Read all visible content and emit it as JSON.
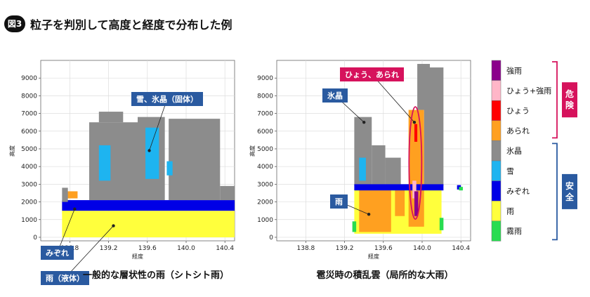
{
  "figure": {
    "badge": "図3",
    "title": "粒子を判別して高度と経度で分布した例"
  },
  "colors": {
    "強雨": "#8b008b",
    "ひょう+強雨": "#ffb6c8",
    "ひょう": "#ff0000",
    "あられ": "#ffa020",
    "氷晶": "#8c8c8c",
    "雪": "#1eb4f0",
    "みぞれ": "#0000e6",
    "雨": "#ffff3c",
    "霧雨": "#28dc50",
    "callout_blue": "#2a5aa0",
    "callout_red": "#d6125c"
  },
  "legend": {
    "items": [
      "強雨",
      "ひょう+強雨",
      "ひょう",
      "あられ",
      "氷晶",
      "雪",
      "みぞれ",
      "雨",
      "霧雨"
    ],
    "danger_label": "危険",
    "safe_label": "安全"
  },
  "chart_data": [
    {
      "type": "scatter",
      "caption": "一般的な層状性の雨（シトシト雨）",
      "xlabel": "経度",
      "ylabel": "高度",
      "xlim": [
        138.5,
        140.5
      ],
      "ylim": [
        -200,
        10000
      ],
      "xticks": [
        "138.8",
        "139.2",
        "139.6",
        "140.0",
        "140.4"
      ],
      "yticks": [
        "0",
        "1000",
        "2000",
        "3000",
        "4000",
        "5000",
        "6000",
        "7000",
        "8000",
        "9000"
      ],
      "grid": true,
      "regions": [
        {
          "class": "雨",
          "lon": [
            138.72,
            140.5
          ],
          "alt": [
            0,
            1500
          ]
        },
        {
          "class": "雨",
          "lon": [
            138.72,
            138.85
          ],
          "alt": [
            1300,
            1800
          ]
        },
        {
          "class": "あられ",
          "lon": [
            138.76,
            138.88
          ],
          "alt": [
            2200,
            2600
          ]
        },
        {
          "class": "みぞれ",
          "lon": [
            138.72,
            140.5
          ],
          "alt": [
            1500,
            2100
          ]
        },
        {
          "class": "氷晶",
          "lon": [
            138.72,
            138.78
          ],
          "alt": [
            2000,
            2800
          ]
        },
        {
          "class": "氷晶",
          "lon": [
            139.0,
            139.5
          ],
          "alt": [
            2100,
            6500
          ]
        },
        {
          "class": "氷晶",
          "lon": [
            139.1,
            139.35
          ],
          "alt": [
            6500,
            7100
          ]
        },
        {
          "class": "氷晶",
          "lon": [
            139.5,
            139.78
          ],
          "alt": [
            2100,
            6800
          ]
        },
        {
          "class": "氷晶",
          "lon": [
            139.82,
            140.35
          ],
          "alt": [
            2100,
            6700
          ]
        },
        {
          "class": "氷晶",
          "lon": [
            140.35,
            140.5
          ],
          "alt": [
            2100,
            2900
          ]
        },
        {
          "class": "雪",
          "lon": [
            139.1,
            139.22
          ],
          "alt": [
            3200,
            5200
          ]
        },
        {
          "class": "雪",
          "lon": [
            139.58,
            139.72
          ],
          "alt": [
            3300,
            6200
          ]
        },
        {
          "class": "雪",
          "lon": [
            139.8,
            139.86
          ],
          "alt": [
            3500,
            4300
          ]
        }
      ],
      "annotations": [
        {
          "label": "雪、氷晶（固体）",
          "lon": 139.62,
          "alt": 4900,
          "color": "blue"
        },
        {
          "label": "みぞれ",
          "lon": 138.85,
          "alt": 1600,
          "color": "blue"
        },
        {
          "label": "雨（液体）",
          "lon": 139.25,
          "alt": 650,
          "color": "blue"
        }
      ]
    },
    {
      "type": "scatter",
      "caption": "雹災時の積乱雲（局所的な大雨）",
      "xlabel": "経度",
      "ylabel": "高度",
      "xlim": [
        138.5,
        140.5
      ],
      "ylim": [
        -200,
        10000
      ],
      "xticks": [
        "138.8",
        "139.2",
        "139.6",
        "140.0",
        "140.4"
      ],
      "yticks": [
        "0",
        "1000",
        "2000",
        "3000",
        "4000",
        "5000",
        "6000",
        "7000",
        "8000",
        "9000"
      ],
      "grid": true,
      "regions": [
        {
          "class": "雨",
          "lon": [
            139.3,
            140.2
          ],
          "alt": [
            200,
            2800
          ]
        },
        {
          "class": "霧雨",
          "lon": [
            139.28,
            139.32
          ],
          "alt": [
            300,
            900
          ]
        },
        {
          "class": "霧雨",
          "lon": [
            140.18,
            140.22
          ],
          "alt": [
            400,
            1100
          ]
        },
        {
          "class": "あられ",
          "lon": [
            139.35,
            139.68
          ],
          "alt": [
            300,
            2700
          ]
        },
        {
          "class": "あられ",
          "lon": [
            139.86,
            140.02
          ],
          "alt": [
            600,
            7200
          ]
        },
        {
          "class": "あられ",
          "lon": [
            139.72,
            139.82
          ],
          "alt": [
            1200,
            2700
          ]
        },
        {
          "class": "氷晶",
          "lon": [
            139.3,
            139.48
          ],
          "alt": [
            2900,
            6800
          ]
        },
        {
          "class": "氷晶",
          "lon": [
            139.48,
            139.62
          ],
          "alt": [
            2900,
            5200
          ]
        },
        {
          "class": "氷晶",
          "lon": [
            139.62,
            139.78
          ],
          "alt": [
            2900,
            4500
          ]
        },
        {
          "class": "氷晶",
          "lon": [
            140.02,
            140.22
          ],
          "alt": [
            2900,
            9600
          ]
        },
        {
          "class": "氷晶",
          "lon": [
            139.95,
            140.08
          ],
          "alt": [
            7200,
            9800
          ]
        },
        {
          "class": "雪",
          "lon": [
            139.35,
            139.42
          ],
          "alt": [
            3200,
            4500
          ]
        },
        {
          "class": "みぞれ",
          "lon": [
            139.3,
            140.22
          ],
          "alt": [
            2650,
            3000
          ]
        },
        {
          "class": "みぞれ",
          "lon": [
            140.36,
            140.4
          ],
          "alt": [
            2700,
            2950
          ]
        },
        {
          "class": "霧雨",
          "lon": [
            140.38,
            140.42
          ],
          "alt": [
            2650,
            2850
          ]
        },
        {
          "class": "ひょう",
          "lon": [
            139.92,
            139.95
          ],
          "alt": [
            5400,
            6400
          ]
        },
        {
          "class": "ひょう+強雨",
          "lon": [
            139.9,
            139.94
          ],
          "alt": [
            2200,
            3200
          ]
        },
        {
          "class": "強雨",
          "lon": [
            139.92,
            139.96
          ],
          "alt": [
            1200,
            2600
          ]
        }
      ],
      "annotations": [
        {
          "label": "ひょう、あられ",
          "lon": 139.92,
          "alt": 6500,
          "color": "red"
        },
        {
          "label": "氷晶",
          "lon": 139.4,
          "alt": 6500,
          "color": "blue"
        },
        {
          "label": "雨",
          "lon": 139.45,
          "alt": 1300,
          "color": "blue"
        }
      ]
    }
  ]
}
